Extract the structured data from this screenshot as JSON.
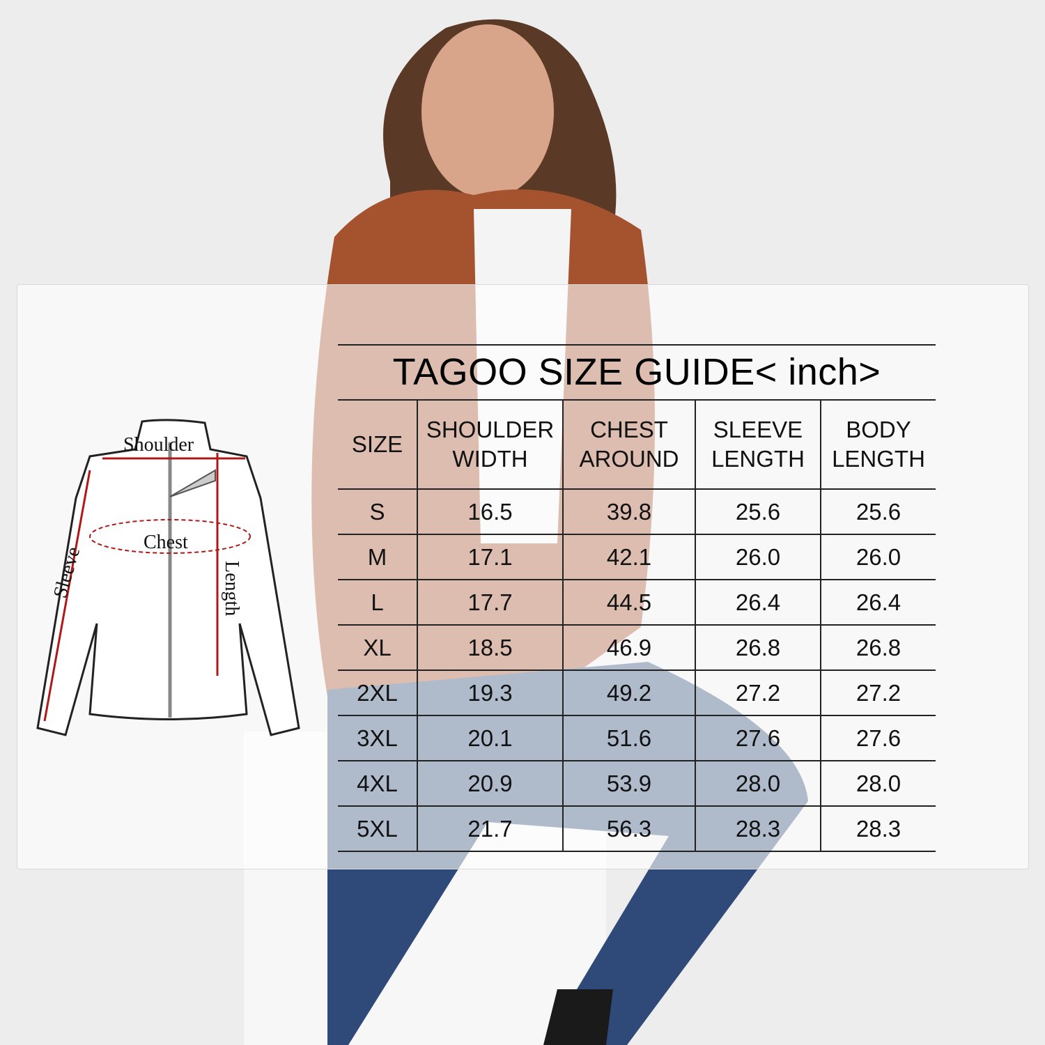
{
  "sizeguide": {
    "title": "TAGOO SIZE GUIDE< inch>",
    "headers": [
      "SIZE",
      "SHOULDER\nWIDTH",
      "CHEST\nAROUND",
      "SLEEVE\nLENGTH",
      "BODY\nLENGTH"
    ],
    "rows": [
      [
        "S",
        "16.5",
        "39.8",
        "25.6",
        "25.6"
      ],
      [
        "M",
        "17.1",
        "42.1",
        "26.0",
        "26.0"
      ],
      [
        "L",
        "17.7",
        "44.5",
        "26.4",
        "26.4"
      ],
      [
        "XL",
        "18.5",
        "46.9",
        "26.8",
        "26.8"
      ],
      [
        "2XL",
        "19.3",
        "49.2",
        "27.2",
        "27.2"
      ],
      [
        "3XL",
        "20.1",
        "51.6",
        "27.6",
        "27.6"
      ],
      [
        "4XL",
        "20.9",
        "53.9",
        "28.0",
        "28.0"
      ],
      [
        "5XL",
        "21.7",
        "56.3",
        "28.3",
        "28.3"
      ]
    ]
  },
  "diagram": {
    "shoulder": "Shoulder",
    "chest": "Chest",
    "sleeve": "Sleeve",
    "length": "Length",
    "arrow_color": "#b01818"
  },
  "colors": {
    "jacket": "#a4532e",
    "jeans": "#2f4a78",
    "background": "#ededed"
  }
}
